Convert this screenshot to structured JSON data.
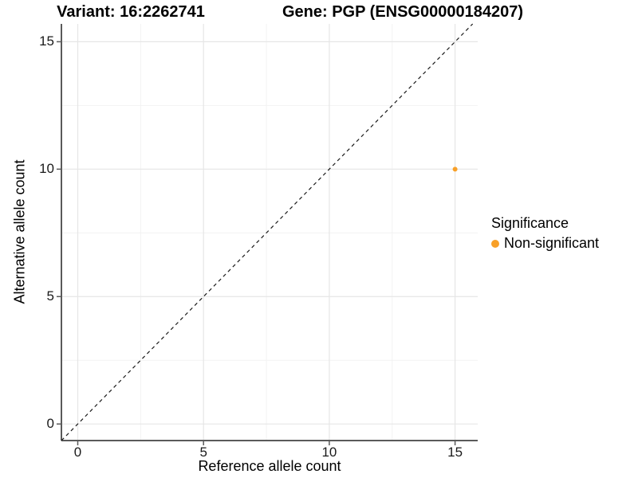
{
  "chart_data": {
    "type": "scatter",
    "titles": {
      "left": "Variant: 16:2262741",
      "right": "Gene: PGP (ENSG00000184207)"
    },
    "xlabel": "Reference allele count",
    "ylabel": "Alternative allele count",
    "xlim": [
      -0.65,
      15.9
    ],
    "ylim": [
      -0.65,
      15.7
    ],
    "xticks": [
      0,
      5,
      10,
      15
    ],
    "yticks": [
      0,
      5,
      10,
      15
    ],
    "xminor": [
      2.5,
      7.5,
      12.5
    ],
    "yminor": [
      2.5,
      7.5,
      12.5
    ],
    "grid": true,
    "identity_line": {
      "equation": "y = x",
      "style": "dashed"
    },
    "series": [
      {
        "name": "Non-significant",
        "color": "#F8A028",
        "points": [
          {
            "x": 15,
            "y": 10
          }
        ]
      }
    ],
    "legend": {
      "title": "Significance",
      "position": "right",
      "entries": [
        {
          "label": "Non-significant",
          "color": "#F8A028",
          "marker": "dot"
        }
      ]
    },
    "colors": {
      "point": "#F8A028",
      "axis": "#5a5a5a",
      "grid_major": "#e6e6e6",
      "grid_minor": "#f2f2f2",
      "identity_line": "#1a1a1a",
      "text": "#000000",
      "background": "#ffffff"
    }
  }
}
